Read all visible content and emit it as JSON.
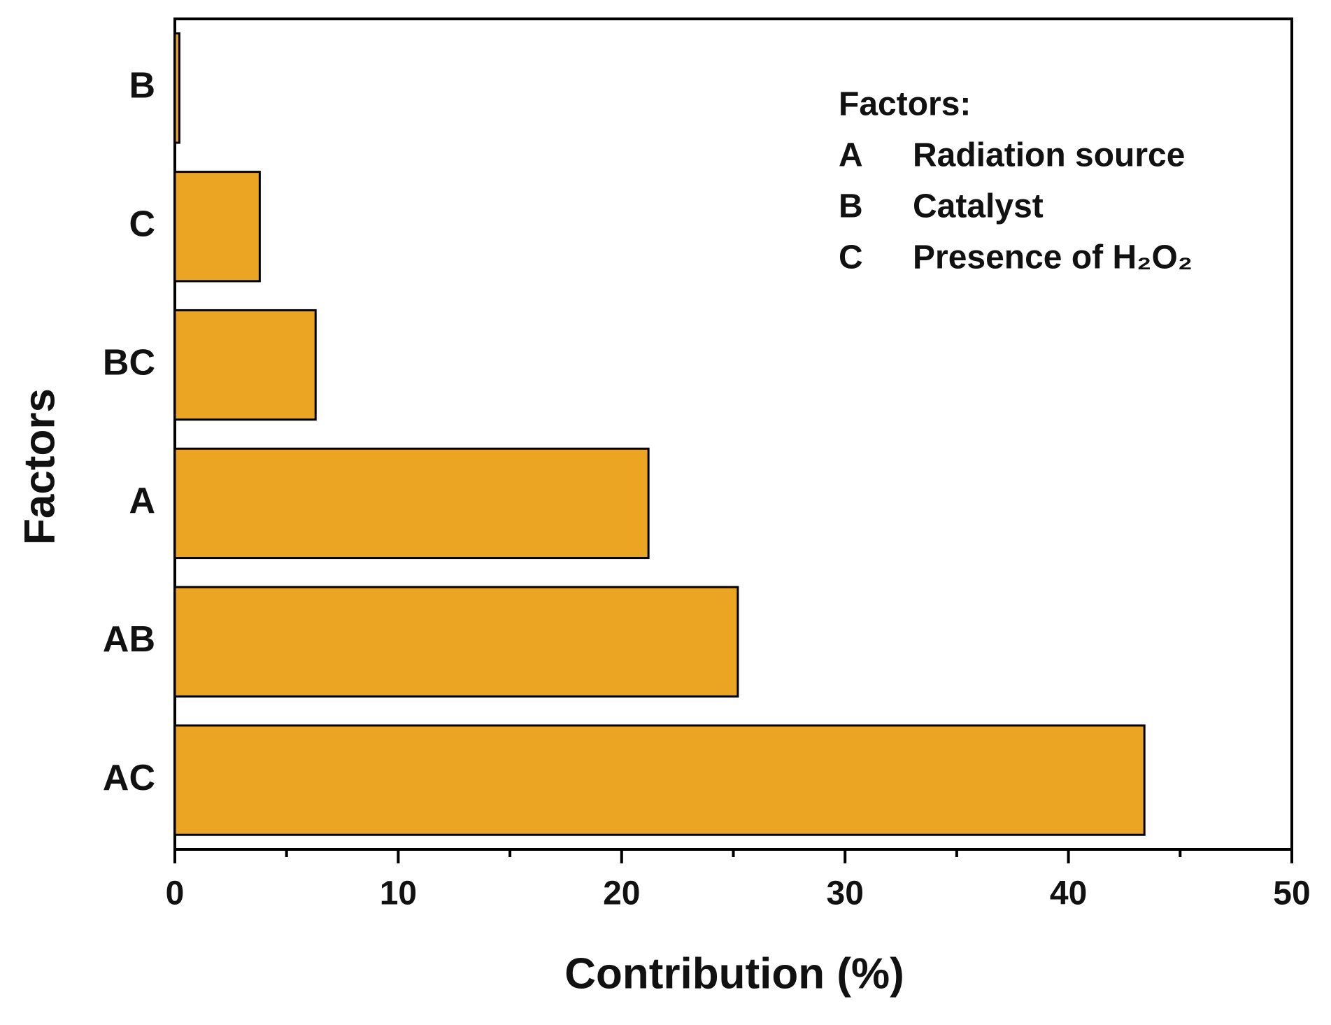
{
  "chart_data": {
    "type": "barh",
    "x_label": "Contribution (%)",
    "y_label": "Factors",
    "categories": [
      "B",
      "C",
      "BC",
      "A",
      "AB",
      "AC"
    ],
    "values": [
      0.2,
      3.8,
      6.3,
      21.2,
      25.2,
      43.4
    ],
    "color": "#eba523",
    "xlim": [
      0,
      50
    ],
    "xticks": [
      0,
      10,
      20,
      30,
      40,
      50
    ],
    "xminor_ticks": [
      5,
      15,
      25,
      35,
      45
    ],
    "legend": {
      "title": "Factors:",
      "items": [
        {
          "key": "A",
          "label": "Radiation source"
        },
        {
          "key": "B",
          "label": "Catalyst"
        },
        {
          "key": "C",
          "label": "Presence of H₂O₂"
        }
      ]
    }
  }
}
